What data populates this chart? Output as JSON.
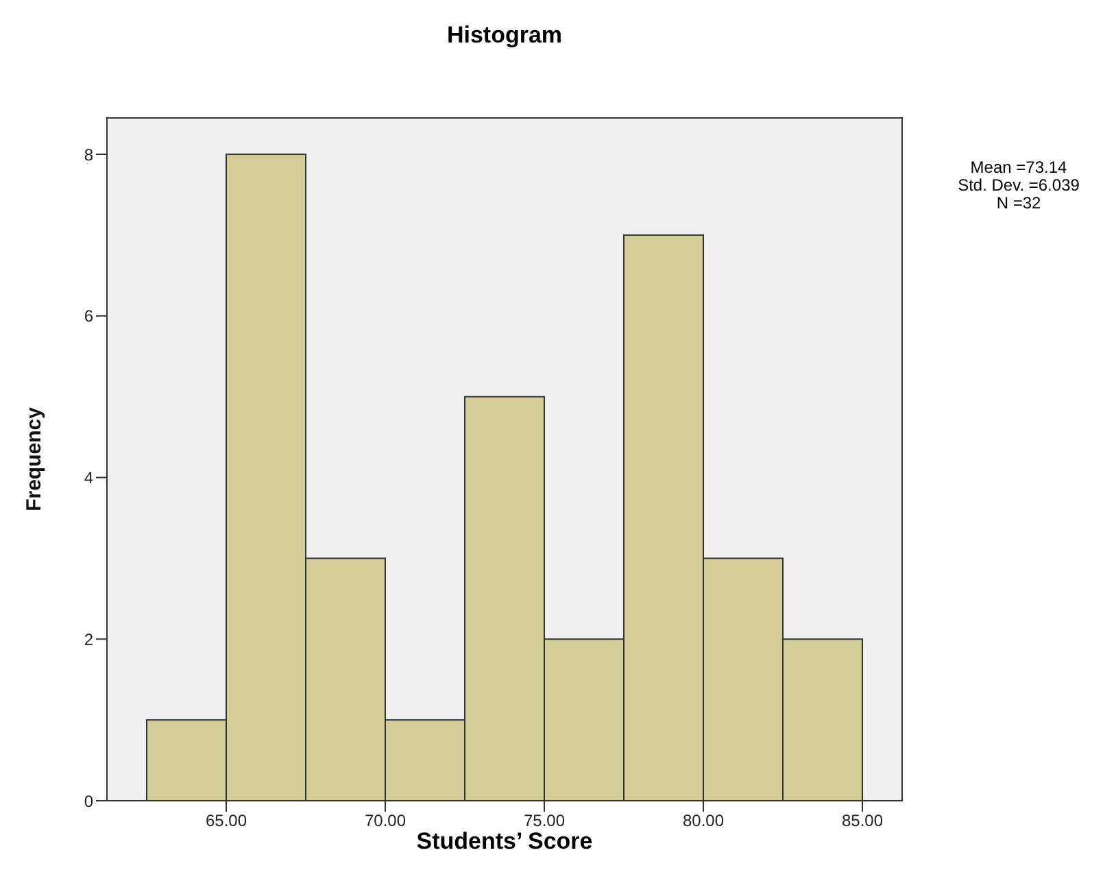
{
  "chart_data": {
    "type": "histogram",
    "title": "Histogram",
    "xlabel": "Students’ Score",
    "ylabel": "Frequency",
    "bins": [
      62.5,
      65,
      67.5,
      70,
      72.5,
      75,
      77.5,
      80,
      82.5,
      85
    ],
    "values": [
      1,
      8,
      3,
      1,
      5,
      2,
      7,
      3,
      2
    ],
    "color": "#d3ce97",
    "xlim": [
      61.25,
      86.25
    ],
    "xticks": [
      {
        "value": 65,
        "label": "65.00"
      },
      {
        "value": 70,
        "label": "70.00"
      },
      {
        "value": 75,
        "label": "75.00"
      },
      {
        "value": 80,
        "label": "80.00"
      },
      {
        "value": 85,
        "label": "85.00"
      }
    ],
    "ylim": [
      0,
      8.45
    ],
    "yticks": [
      0,
      2,
      4,
      6,
      8
    ],
    "annotations": [
      "Mean =73.14",
      "Std. Dev. =6.039",
      "N =32"
    ]
  }
}
